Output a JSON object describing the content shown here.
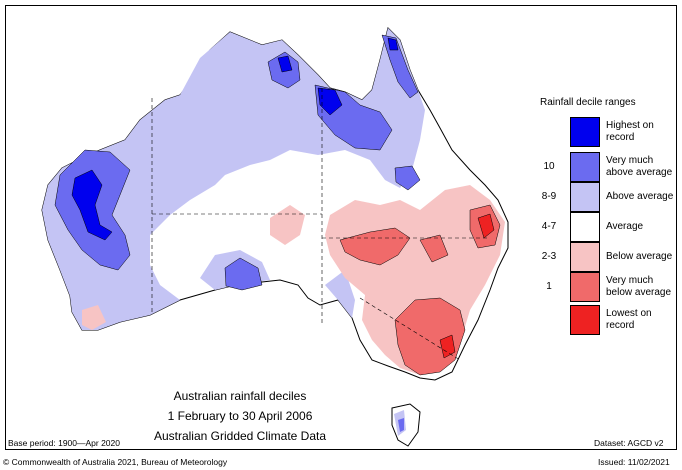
{
  "legend": {
    "title": "Rainfall decile ranges",
    "items": [
      {
        "code": "",
        "label": "Highest on record",
        "color": "#0000ee"
      },
      {
        "code": "10",
        "label": "Very much above average",
        "color": "#6b6bf0"
      },
      {
        "code": "8-9",
        "label": "Above average",
        "color": "#c4c4f4"
      },
      {
        "code": "4-7",
        "label": "Average",
        "color": "#ffffff"
      },
      {
        "code": "2-3",
        "label": "Below average",
        "color": "#f7c4c4"
      },
      {
        "code": "1",
        "label": "Very much below average",
        "color": "#f06a6a"
      },
      {
        "code": "",
        "label": "Lowest on record",
        "color": "#ee2222"
      }
    ]
  },
  "caption": {
    "line1": "Australian rainfall deciles",
    "line2": "1 February to 30 April 2006",
    "line3": "Australian Gridded Climate Data"
  },
  "footer": {
    "base_period": "Base period: 1900—Apr 2020",
    "dataset": "Dataset: AGCD v2",
    "copyright": "© Commonwealth of Australia 2021, Bureau of Meteorology",
    "issued": "Issued: 11/02/2021"
  },
  "colors": {
    "highest": "#0000ee",
    "very_much_above": "#6b6bf0",
    "above": "#c4c4f4",
    "average": "#ffffff",
    "below": "#f7c4c4",
    "very_much_below": "#f06a6a",
    "lowest": "#ee2222"
  }
}
